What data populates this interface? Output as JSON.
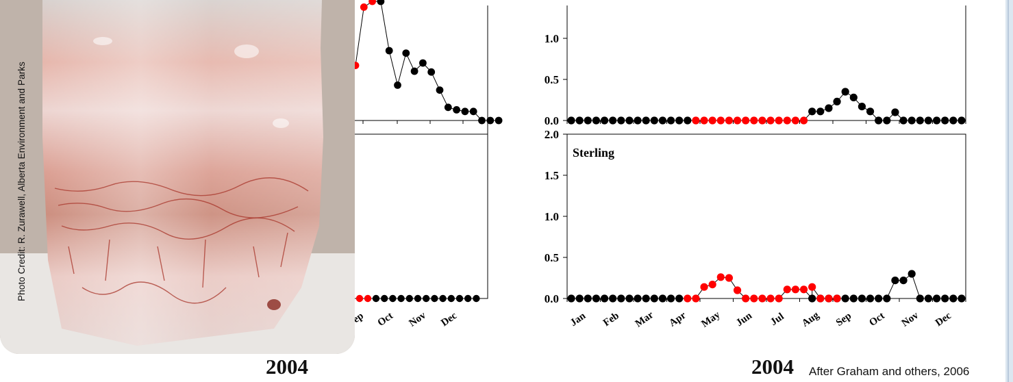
{
  "chart_data": [
    {
      "type": "scatter",
      "title": "",
      "xlabel": "2004",
      "ylabel": "",
      "ylim": [
        0,
        1.5
      ],
      "yticks": [
        "0.0",
        "0.5",
        "1.0"
      ],
      "x_tick_labels": [],
      "series": [
        {
          "color": "#000000",
          "points": [
            [
              1,
              0
            ],
            [
              2,
              0
            ],
            [
              3,
              0
            ],
            [
              4,
              0
            ],
            [
              5,
              0
            ],
            [
              6,
              0
            ],
            [
              7,
              0
            ],
            [
              8,
              0
            ],
            [
              9,
              0
            ],
            [
              10,
              0
            ],
            [
              11,
              0
            ],
            [
              12,
              0
            ],
            [
              13,
              0
            ],
            [
              14,
              0
            ],
            [
              15,
              0
            ],
            [
              30,
              0.11
            ],
            [
              31,
              0.11
            ],
            [
              32,
              0.15
            ],
            [
              33,
              0.23
            ],
            [
              34,
              0.35
            ],
            [
              35,
              0.28
            ],
            [
              36,
              0.17
            ],
            [
              37,
              0.11
            ],
            [
              38,
              0
            ],
            [
              39,
              0
            ],
            [
              40,
              0.1
            ],
            [
              41,
              0
            ],
            [
              42,
              0
            ],
            [
              43,
              0
            ],
            [
              44,
              0
            ],
            [
              45,
              0
            ],
            [
              46,
              0
            ],
            [
              47,
              0
            ],
            [
              48,
              0
            ]
          ]
        },
        {
          "color": "#ff0000",
          "points": [
            [
              16,
              0
            ],
            [
              17,
              0
            ],
            [
              18,
              0
            ],
            [
              19,
              0
            ],
            [
              20,
              0
            ],
            [
              21,
              0
            ],
            [
              22,
              0
            ],
            [
              23,
              0
            ],
            [
              24,
              0
            ],
            [
              25,
              0
            ],
            [
              26,
              0
            ],
            [
              27,
              0
            ],
            [
              28,
              0
            ],
            [
              29,
              0
            ]
          ]
        }
      ]
    },
    {
      "type": "scatter",
      "title": "Sterling",
      "xlabel": "2004",
      "ylabel": "",
      "ylim": [
        0,
        2.0
      ],
      "yticks": [
        "0.0",
        "0.5",
        "1.0",
        "1.5",
        "2.0"
      ],
      "x_tick_labels": [
        "Jan",
        "Feb",
        "Mar",
        "Apr",
        "May",
        "Jun",
        "Jul",
        "Aug",
        "Sep",
        "Oct",
        "Nov",
        "Dec"
      ],
      "series": [
        {
          "color": "#000000",
          "points": [
            [
              1,
              0
            ],
            [
              2,
              0
            ],
            [
              3,
              0
            ],
            [
              4,
              0
            ],
            [
              5,
              0
            ],
            [
              6,
              0
            ],
            [
              7,
              0
            ],
            [
              8,
              0
            ],
            [
              9,
              0
            ],
            [
              10,
              0
            ],
            [
              11,
              0
            ],
            [
              12,
              0
            ],
            [
              13,
              0
            ],
            [
              14,
              0
            ],
            [
              30,
              0
            ],
            [
              31,
              0
            ],
            [
              32,
              0
            ],
            [
              33,
              0
            ],
            [
              34,
              0
            ],
            [
              35,
              0
            ],
            [
              36,
              0
            ],
            [
              37,
              0
            ],
            [
              38,
              0
            ],
            [
              39,
              0
            ],
            [
              40,
              0.22
            ],
            [
              41,
              0.22
            ],
            [
              42,
              0.3
            ],
            [
              43,
              0
            ],
            [
              44,
              0
            ],
            [
              45,
              0
            ],
            [
              46,
              0
            ],
            [
              47,
              0
            ],
            [
              48,
              0
            ]
          ]
        },
        {
          "color": "#ff0000",
          "points": [
            [
              15,
              0
            ],
            [
              16,
              0
            ],
            [
              17,
              0.14
            ],
            [
              18,
              0.17
            ],
            [
              19,
              0.26
            ],
            [
              20,
              0.25
            ],
            [
              21,
              0.1
            ],
            [
              22,
              0
            ],
            [
              23,
              0
            ],
            [
              24,
              0
            ],
            [
              25,
              0
            ],
            [
              26,
              0
            ],
            [
              27,
              0.11
            ],
            [
              28,
              0.11
            ],
            [
              29,
              0.11
            ],
            [
              30,
              0.14
            ],
            [
              31,
              0
            ],
            [
              32,
              0
            ],
            [
              33,
              0
            ]
          ]
        }
      ]
    },
    {
      "type": "line",
      "title": "",
      "ylim": [
        0,
        1.5
      ],
      "x_tick_labels": [
        "Sep",
        "Oct",
        "Nov",
        "Dec"
      ],
      "series": [
        {
          "color": "#000000",
          "values": [
            1.45,
            0.85,
            0.43,
            0.82,
            0.6,
            0.7,
            0.59,
            0.37,
            0.16,
            0.13,
            0.11,
            0.11,
            0.0,
            0.0,
            0.0
          ]
        },
        {
          "color": "#ff0000",
          "values": [
            0.67,
            1.38,
            1.45
          ]
        }
      ]
    },
    {
      "type": "scatter",
      "title": "",
      "ylim": [
        0,
        2.0
      ],
      "series": [
        {
          "color": "#000000",
          "values": [
            0,
            0,
            0,
            0,
            0,
            0,
            0,
            0,
            0,
            0,
            0,
            0,
            0
          ]
        },
        {
          "color": "#ff0000",
          "values": [
            0,
            0,
            0
          ]
        }
      ]
    }
  ],
  "photo": {
    "credit": "Photo Credit: R. Zurawell, Alberta Environment and Parks"
  },
  "labels": {
    "year_left": "2004",
    "year_right": "2004",
    "attribution": "After Graham and others, 2006"
  }
}
